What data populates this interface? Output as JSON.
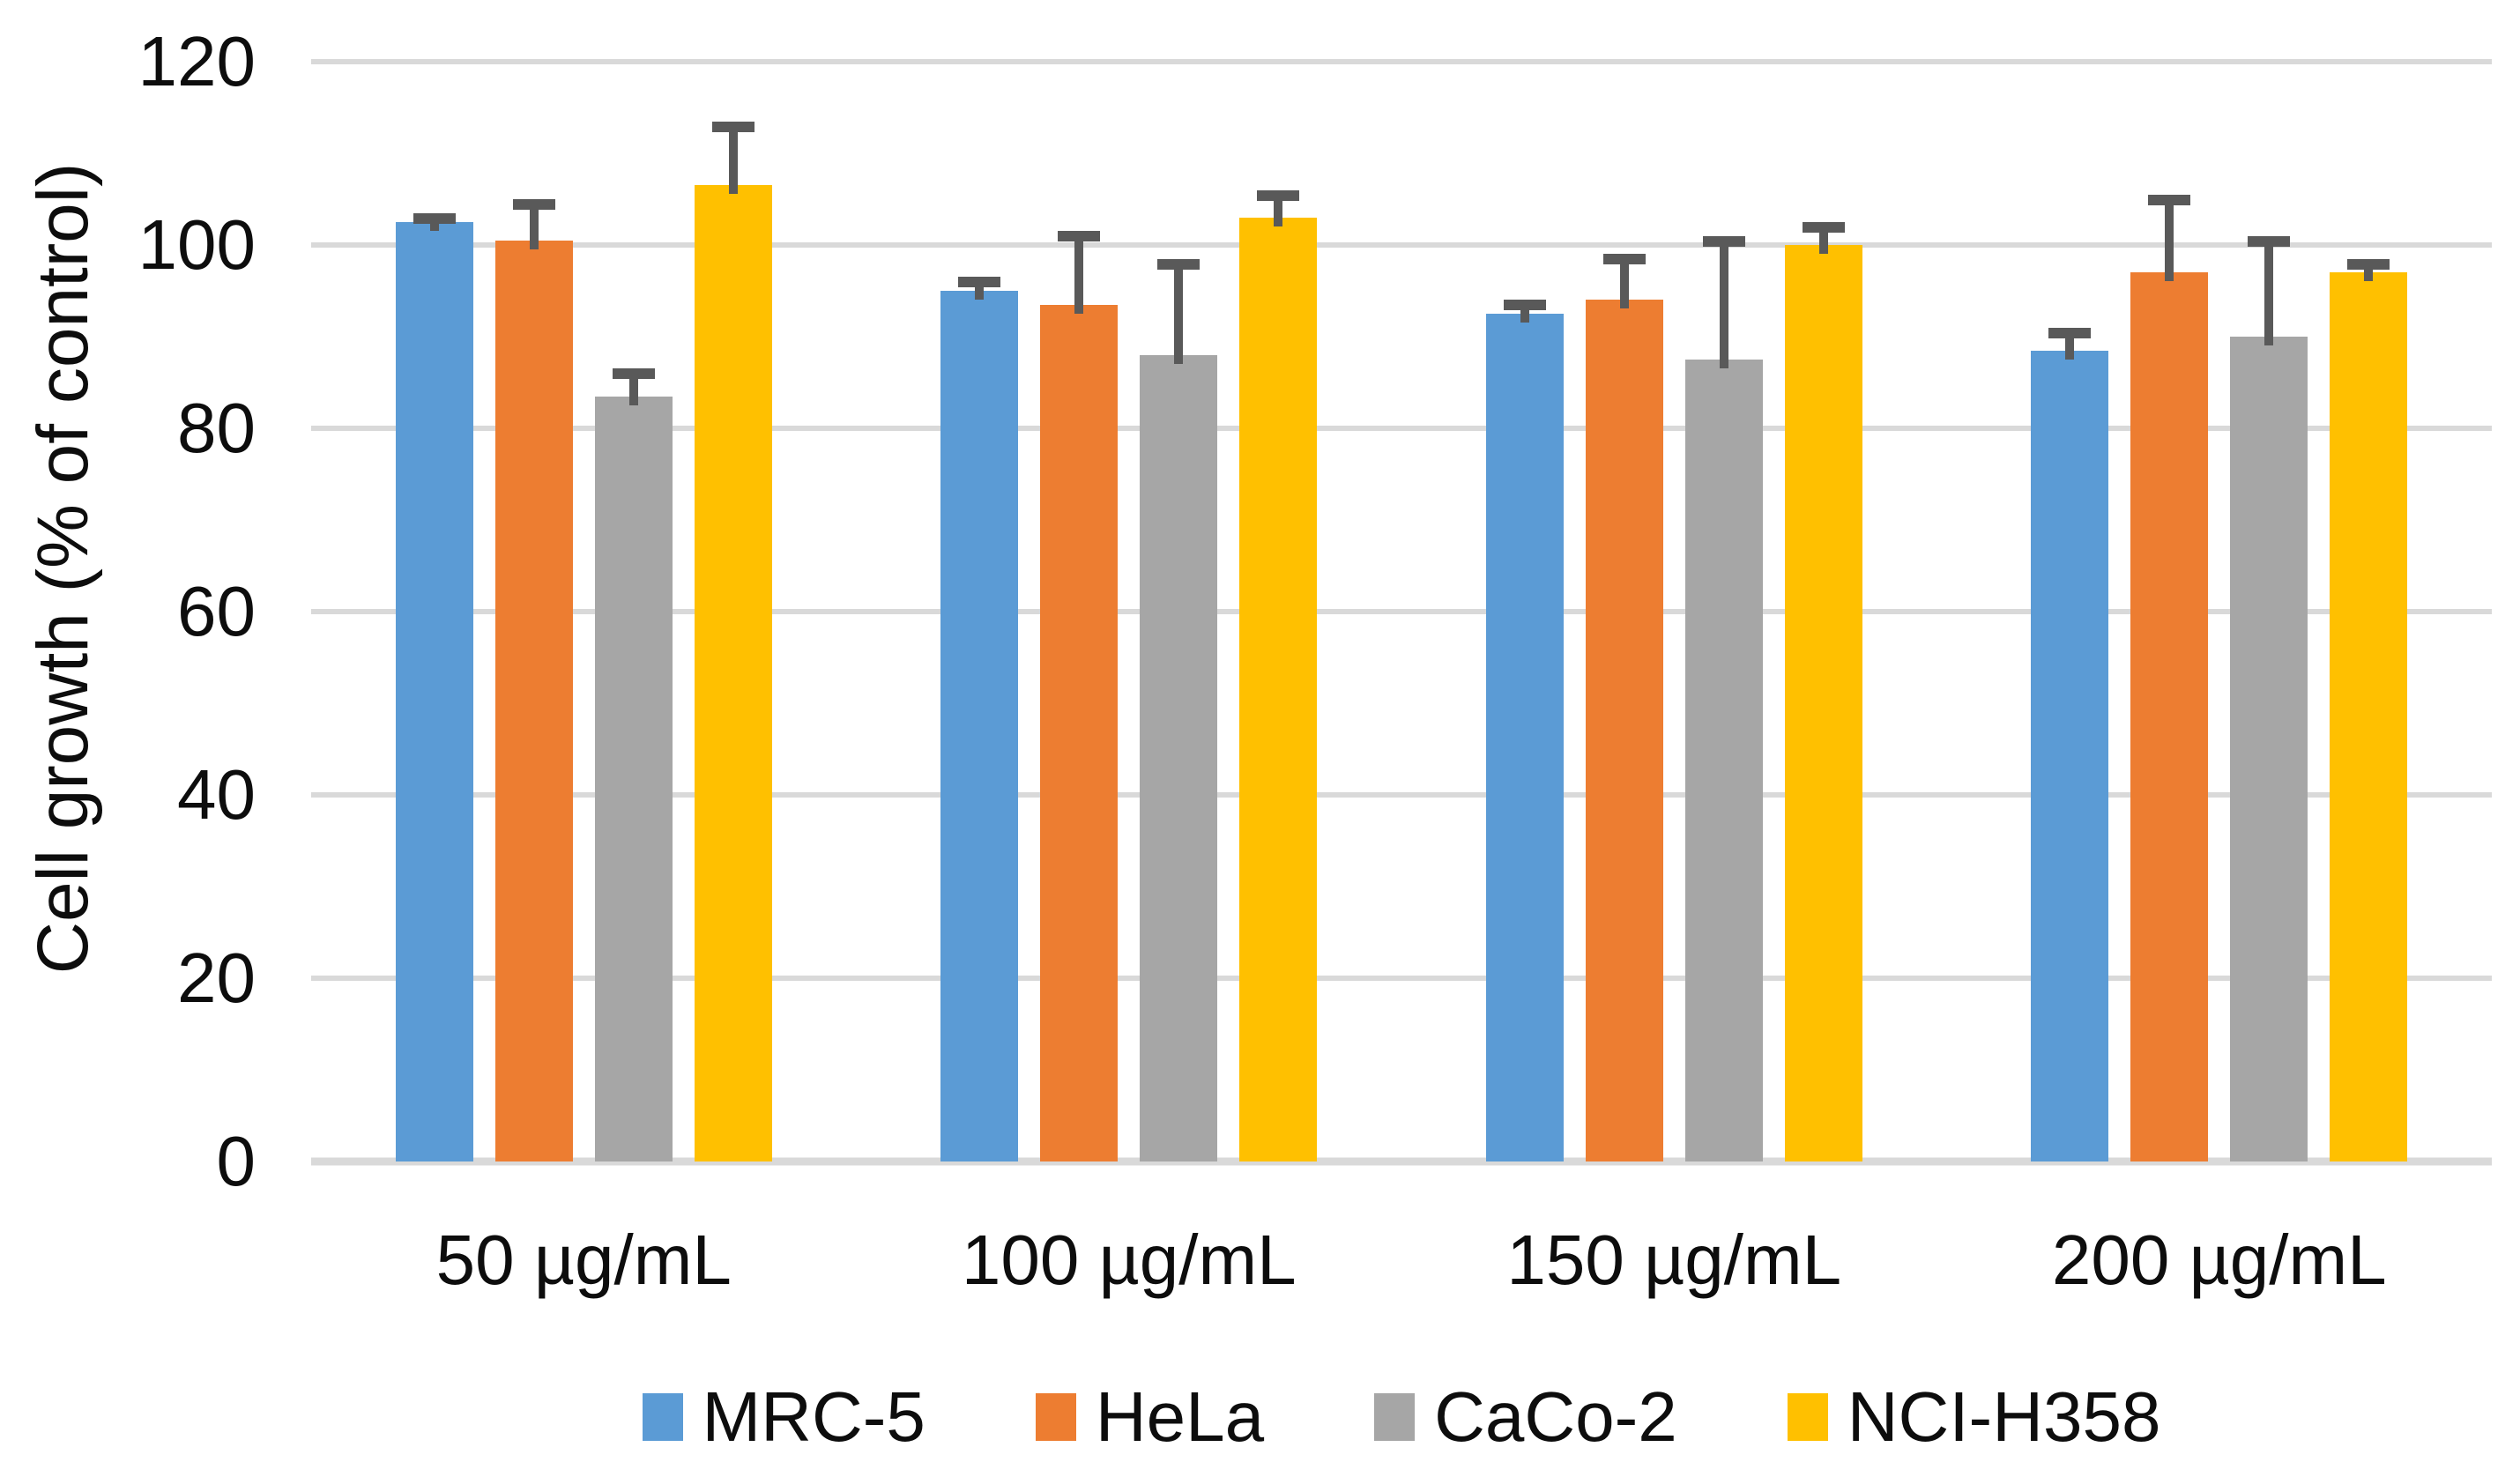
{
  "chart_data": {
    "type": "bar",
    "title": "",
    "xlabel": "",
    "ylabel": "Cell growth (% of control)",
    "ylim": [
      0,
      120
    ],
    "yticks": [
      0,
      20,
      40,
      60,
      80,
      100,
      120
    ],
    "grid": true,
    "legend_position": "bottom",
    "categories": [
      "50 µg/mL",
      "100 µg/mL",
      "150 µg/mL",
      "200 µg/mL"
    ],
    "series": [
      {
        "name": "MRC-5",
        "color": "#5B9BD5",
        "values": [
          102.5,
          95.0,
          92.5,
          88.5
        ],
        "errors_plus": [
          1.0,
          1.5,
          1.5,
          2.5
        ]
      },
      {
        "name": "HeLa",
        "color": "#ED7D31",
        "values": [
          100.5,
          93.5,
          94.0,
          97.0
        ],
        "errors_plus": [
          4.5,
          8.0,
          5.0,
          8.5
        ]
      },
      {
        "name": "CaCo-2",
        "color": "#A6A6A6",
        "values": [
          83.5,
          88.0,
          87.5,
          90.0
        ],
        "errors_plus": [
          3.0,
          10.5,
          13.5,
          11.0
        ]
      },
      {
        "name": "NCI-H358",
        "color": "#FFC000",
        "values": [
          106.5,
          103.0,
          100.0,
          97.0
        ],
        "errors_plus": [
          7.0,
          3.0,
          2.5,
          1.5
        ]
      }
    ],
    "error_bar_color": "#595959",
    "gridline_color": "#D9D9D9",
    "axis_text_color": "#0d0d0d"
  }
}
